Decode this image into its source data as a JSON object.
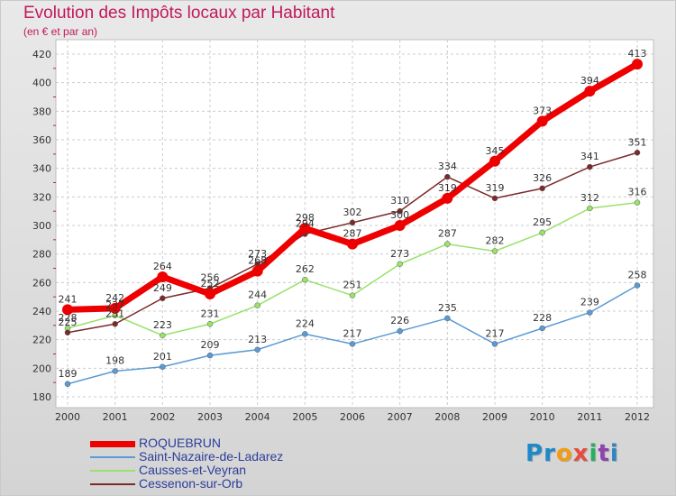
{
  "title": "Evolution des Impôts locaux par Habitant",
  "subtitle": "(en € et par an)",
  "logo": {
    "letters": [
      "P",
      "r",
      "o",
      "x",
      "i",
      "t",
      "i"
    ],
    "colors": [
      "#1e88c8",
      "#1e88c8",
      "#f39c12",
      "#e74c3c",
      "#27ae60",
      "#8e44ad",
      "#2e86c1"
    ]
  },
  "chart_data": {
    "type": "line",
    "categories": [
      "2000",
      "2001",
      "2002",
      "2003",
      "2004",
      "2005",
      "2006",
      "2007",
      "2008",
      "2009",
      "2010",
      "2011",
      "2012"
    ],
    "ylim": [
      180,
      420
    ],
    "yticks": [
      "180",
      "200",
      "220",
      "240",
      "260",
      "280",
      "300",
      "320",
      "340",
      "360",
      "380",
      "400",
      "420"
    ],
    "grid": true,
    "legend_position": "bottom-left",
    "series": [
      {
        "name": "ROQUEBRUN",
        "color": "#ee0000",
        "values": [
          241,
          242,
          264,
          252,
          268,
          298,
          287,
          300,
          319,
          345,
          373,
          394,
          413
        ]
      },
      {
        "name": "Saint-Nazaire-de-Ladarez",
        "color": "#5b9bd5",
        "values": [
          189,
          198,
          201,
          209,
          213,
          224,
          217,
          226,
          235,
          217,
          228,
          239,
          258
        ]
      },
      {
        "name": "Causses-et-Veyran",
        "color": "#99e26b",
        "values": [
          228,
          237,
          223,
          231,
          244,
          262,
          251,
          273,
          287,
          282,
          295,
          312,
          316
        ]
      },
      {
        "name": "Cessenon-sur-Orb",
        "color": "#7a2a2a",
        "values": [
          225,
          231,
          249,
          256,
          273,
          294,
          302,
          310,
          334,
          319,
          326,
          341,
          351
        ]
      }
    ]
  }
}
